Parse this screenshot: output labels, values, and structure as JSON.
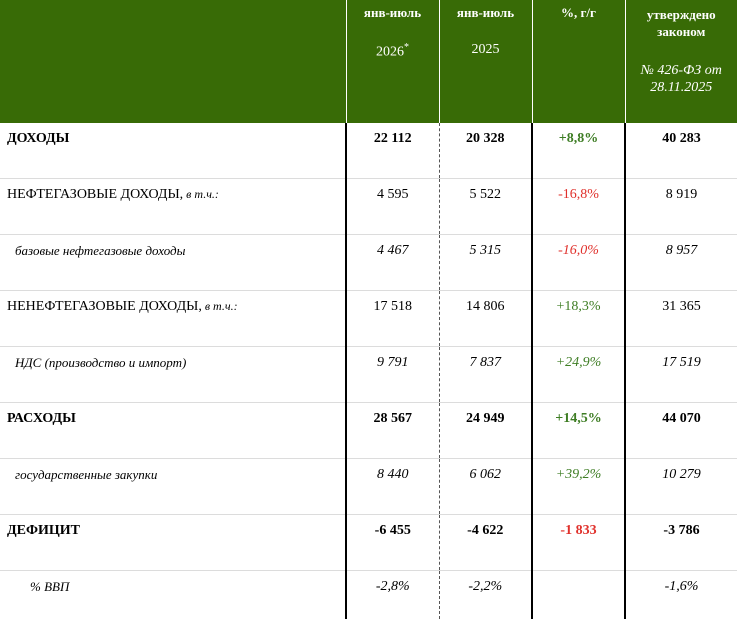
{
  "header": {
    "col1_line1": "янв-июль",
    "col1_line2": "2026",
    "col1_note": "*",
    "col2_line1": "янв-июль",
    "col2_line2": "2025",
    "col3_line1": "%, г/г",
    "col4_line1a": "утверждено",
    "col4_line1b": "законом",
    "col4_line3a": "№ 426-ФЗ от",
    "col4_line3b": "28.11.2025"
  },
  "rows": [
    {
      "label": "ДОХОДЫ",
      "note": "",
      "v1": "22 112",
      "v2": "20 328",
      "v3": "+8,8%",
      "v4": "40 283"
    },
    {
      "label": "НЕФТЕГАЗОВЫЕ ДОХОДЫ,",
      "note": " в т.ч.:",
      "v1": "4 595",
      "v2": "5 522",
      "v3": "-16,8%",
      "v4": "8 919"
    },
    {
      "label": "базовые нефтегазовые доходы",
      "note": "",
      "v1": "4 467",
      "v2": "5 315",
      "v3": "-16,0%",
      "v4": "8 957"
    },
    {
      "label": "НЕНЕФТЕГАЗОВЫЕ ДОХОДЫ,",
      "note": " в т.ч.:",
      "v1": "17 518",
      "v2": "14 806",
      "v3": "+18,3%",
      "v4": "31 365"
    },
    {
      "label": "НДС (производство и импорт)",
      "note": "",
      "v1": "9 791",
      "v2": "7 837",
      "v3": "+24,9%",
      "v4": "17 519"
    },
    {
      "label": "РАСХОДЫ",
      "note": "",
      "v1": "28 567",
      "v2": "24 949",
      "v3": "+14,5%",
      "v4": "44 070"
    },
    {
      "label": "государственные закупки",
      "note": "",
      "v1": "8 440",
      "v2": "6 062",
      "v3": "+39,2%",
      "v4": "10 279"
    },
    {
      "label": "ДЕФИЦИТ",
      "note": "",
      "v1": "-6 455",
      "v2": "-4 622",
      "v3": "-1 833",
      "v4": "-3 786"
    },
    {
      "label": "% ВВП",
      "note": "",
      "v1": "-2,8%",
      "v2": "-2,2%",
      "v3": "",
      "v4": "-1,6%"
    }
  ],
  "colors": {
    "header_bg": "#386b06",
    "positive": "#3e7d24",
    "negative": "#e0302b"
  }
}
